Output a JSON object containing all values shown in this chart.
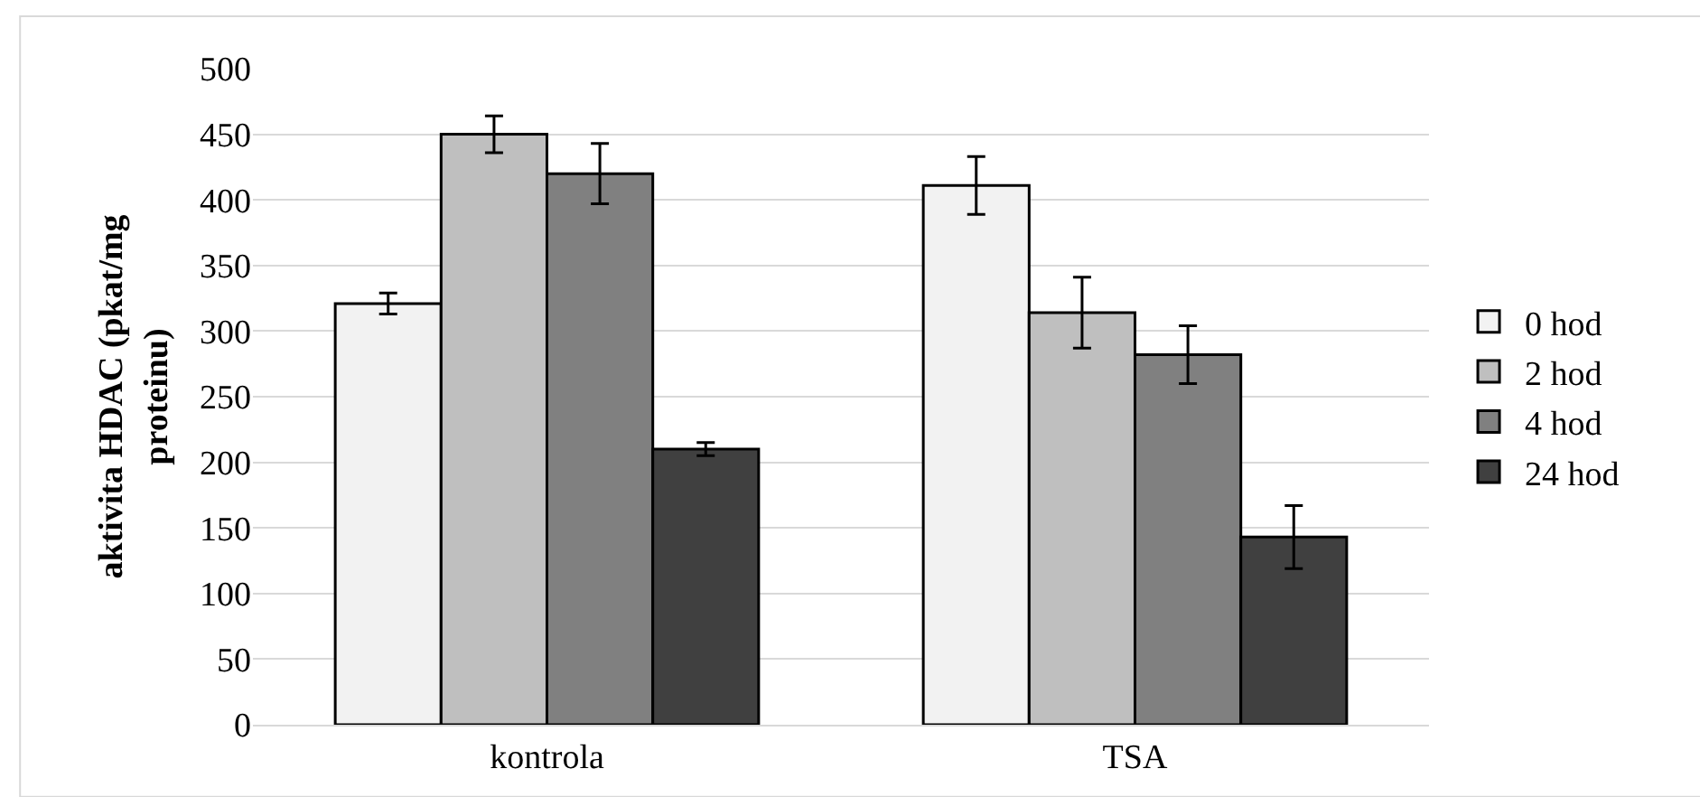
{
  "chart_data": {
    "type": "bar",
    "ylabel": "aktivita HDAC (pkat/mg proteinu)",
    "categories": [
      "kontrola",
      "TSA"
    ],
    "series": [
      {
        "name": "0 hod",
        "color": "#f2f2f2",
        "values": [
          321,
          411
        ],
        "errors": [
          8,
          22
        ]
      },
      {
        "name": "2 hod",
        "color": "#bfbfbf",
        "values": [
          450,
          314
        ],
        "errors": [
          14,
          27
        ]
      },
      {
        "name": "4 hod",
        "color": "#808080",
        "values": [
          420,
          282
        ],
        "errors": [
          23,
          22
        ]
      },
      {
        "name": "24 hod",
        "color": "#404040",
        "values": [
          210,
          143
        ],
        "errors": [
          5,
          24
        ]
      }
    ],
    "ylim": [
      0,
      500
    ],
    "yticks": [
      0,
      50,
      100,
      150,
      200,
      250,
      300,
      350,
      400,
      450,
      500
    ],
    "grid": "y",
    "legend": "right"
  }
}
